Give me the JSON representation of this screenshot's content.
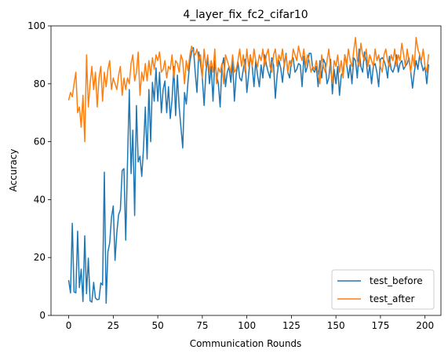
{
  "chart_data": {
    "type": "line",
    "title": "4_layer_fix_fc2_cifar10",
    "xlabel": "Communication Rounds",
    "ylabel": "Accuracy",
    "xlim": [
      -9.95,
      208.95
    ],
    "ylim": [
      0,
      100
    ],
    "xticks": [
      0,
      25,
      50,
      75,
      100,
      125,
      150,
      175,
      200
    ],
    "yticks": [
      0,
      20,
      40,
      60,
      80,
      100
    ],
    "legend_position": "lower right",
    "grid": false,
    "series": [
      {
        "name": "test_before",
        "color": "#1f77b4",
        "values": [
          12.0,
          7.8,
          31.8,
          8.1,
          7.8,
          29.1,
          9.6,
          16.0,
          4.8,
          27.5,
          7.5,
          19.8,
          5.0,
          4.6,
          11.4,
          6.0,
          5.4,
          5.6,
          11.2,
          10.5,
          49.5,
          4.2,
          22.0,
          25.0,
          33.8,
          37.8,
          19.0,
          28.5,
          34.8,
          36.5,
          50.0,
          50.7,
          26.0,
          53.0,
          78.0,
          49.0,
          64.0,
          34.5,
          72.5,
          53.0,
          55.0,
          48.0,
          58.0,
          72.0,
          54.0,
          78.0,
          60.0,
          80.5,
          74.0,
          85.5,
          74.0,
          84.0,
          70.0,
          78.0,
          81.0,
          70.0,
          79.0,
          68.0,
          74.5,
          86.0,
          69.0,
          83.0,
          72.0,
          65.0,
          57.8,
          77.0,
          73.0,
          81.0,
          87.5,
          91.0,
          92.5,
          84.0,
          77.0,
          91.0,
          87.0,
          82.0,
          72.5,
          84.0,
          89.0,
          80.0,
          86.0,
          74.0,
          88.0,
          83.0,
          80.0,
          72.0,
          86.0,
          89.0,
          79.0,
          84.0,
          86.0,
          80.5,
          88.0,
          74.0,
          83.0,
          87.5,
          82.0,
          81.0,
          85.0,
          88.5,
          77.0,
          83.0,
          90.0,
          86.0,
          79.0,
          88.0,
          83.0,
          79.0,
          86.5,
          82.0,
          90.0,
          86.5,
          84.0,
          82.0,
          89.0,
          86.5,
          75.0,
          83.0,
          88.0,
          85.5,
          80.5,
          87.0,
          90.5,
          84.0,
          82.0,
          88.0,
          89.0,
          84.0,
          85.0,
          87.0,
          86.5,
          79.0,
          89.5,
          84.0,
          86.0,
          90.5,
          90.5,
          85.0,
          84.0,
          86.0,
          79.0,
          88.0,
          82.0,
          88.5,
          87.0,
          80.0,
          82.0,
          88.5,
          76.5,
          85.0,
          80.0,
          86.0,
          76.0,
          83.0,
          84.0,
          90.0,
          87.0,
          82.0,
          86.5,
          80.0,
          89.0,
          88.0,
          82.0,
          92.0,
          86.0,
          84.0,
          91.0,
          88.0,
          82.0,
          86.5,
          80.0,
          86.0,
          87.0,
          84.0,
          79.0,
          88.5,
          89.0,
          88.0,
          86.0,
          82.0,
          89.5,
          85.0,
          84.0,
          86.0,
          90.0,
          84.0,
          87.0,
          88.0,
          85.0,
          86.0,
          87.0,
          89.0,
          84.0,
          78.5,
          84.0,
          88.0,
          85.0,
          90.0,
          87.0,
          84.5,
          86.0,
          80.0,
          86.5
        ]
      },
      {
        "name": "test_after",
        "color": "#ff7f0e",
        "values": [
          74.5,
          77.0,
          75.5,
          80.0,
          84.0,
          70.0,
          72.0,
          65.0,
          76.0,
          60.0,
          90.0,
          72.0,
          80.0,
          86.0,
          78.0,
          84.0,
          72.0,
          82.0,
          86.0,
          74.0,
          84.0,
          79.0,
          85.0,
          88.0,
          78.0,
          82.0,
          80.0,
          78.0,
          83.0,
          86.0,
          76.0,
          82.0,
          78.0,
          82.0,
          80.0,
          87.0,
          90.0,
          81.0,
          84.0,
          91.0,
          76.0,
          84.0,
          81.0,
          87.0,
          81.0,
          88.0,
          83.0,
          89.0,
          85.0,
          90.0,
          88.0,
          91.0,
          84.0,
          85.0,
          88.0,
          82.0,
          86.0,
          85.0,
          90.0,
          82.0,
          88.0,
          87.0,
          84.0,
          90.0,
          88.0,
          80.0,
          88.0,
          84.5,
          90.0,
          93.0,
          91.0,
          90.0,
          92.0,
          88.0,
          90.0,
          82.0,
          92.0,
          86.0,
          90.0,
          84.0,
          88.0,
          84.0,
          92.0,
          80.0,
          85.5,
          84.0,
          87.0,
          80.0,
          90.0,
          88.0,
          86.0,
          84.0,
          90.0,
          84.0,
          85.0,
          88.0,
          92.0,
          86.0,
          90.0,
          84.0,
          92.0,
          86.0,
          90.0,
          86.0,
          92.0,
          88.0,
          86.0,
          90.0,
          88.0,
          92.0,
          86.0,
          90.0,
          92.0,
          86.0,
          84.0,
          90.0,
          92.0,
          86.0,
          90.0,
          88.0,
          92.0,
          86.0,
          90.0,
          84.0,
          88.0,
          86.0,
          92.0,
          90.0,
          88.0,
          93.0,
          90.0,
          88.0,
          92.0,
          86.0,
          90.0,
          88.0,
          84.0,
          86.0,
          85.0,
          88.0,
          84.0,
          80.0,
          90.0,
          86.0,
          84.0,
          88.0,
          92.0,
          85.0,
          80.0,
          88.0,
          86.0,
          90.0,
          84.0,
          88.0,
          82.0,
          90.0,
          86.0,
          92.0,
          88.0,
          86.0,
          91.5,
          96.0,
          88.0,
          86.0,
          94.0,
          90.0,
          88.0,
          92.0,
          86.0,
          90.0,
          88.0,
          86.0,
          92.0,
          88.0,
          90.0,
          86.0,
          84.0,
          90.0,
          92.0,
          88.0,
          86.0,
          90.0,
          88.0,
          92.0,
          86.0,
          90.0,
          88.0,
          94.0,
          90.0,
          86.0,
          92.0,
          88.0,
          84.0,
          90.0,
          86.0,
          96.0,
          92.0,
          90.0,
          88.0,
          92.0,
          86.0,
          84.0,
          90.0
        ]
      }
    ]
  }
}
